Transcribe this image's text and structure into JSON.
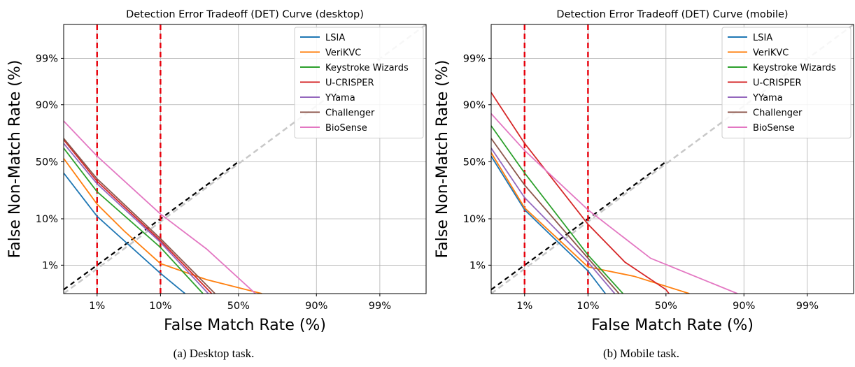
{
  "chart_data": [
    {
      "type": "line",
      "title": "Detection Error Tradeoff (DET) Curve (desktop)",
      "xlabel": "False Match Rate (%)",
      "ylabel": "False Non-Match Rate (%)",
      "x_ticks": [
        {
          "value": 1,
          "label": "1%"
        },
        {
          "value": 10,
          "label": "10%"
        },
        {
          "value": 50,
          "label": "50%"
        },
        {
          "value": 90,
          "label": "90%"
        },
        {
          "value": 99,
          "label": "99%"
        }
      ],
      "y_ticks": [
        {
          "value": 1,
          "label": "1%"
        },
        {
          "value": 10,
          "label": "10%"
        },
        {
          "value": 50,
          "label": "50%"
        },
        {
          "value": 90,
          "label": "90%"
        },
        {
          "value": 99,
          "label": "99%"
        }
      ],
      "xlim": [
        0.2,
        99.9
      ],
      "ylim": [
        0.15,
        99.9
      ],
      "grid": true,
      "legend_position": "top-right",
      "thresholds": [
        1,
        10
      ],
      "reference_line": "diagonal",
      "caption": "(a) Desktop task.",
      "series": [
        {
          "name": "LSIA",
          "color": "#1f77b4",
          "points": [
            [
              0.2,
              40
            ],
            [
              1,
              11
            ],
            [
              10,
              0.6
            ],
            [
              19,
              0.15
            ]
          ]
        },
        {
          "name": "VeriKVC",
          "color": "#ff7f0e",
          "points": [
            [
              0.2,
              53
            ],
            [
              1,
              17
            ],
            [
              3,
              6
            ],
            [
              10,
              1.1
            ],
            [
              30,
              0.4
            ],
            [
              65,
              0.15
            ]
          ]
        },
        {
          "name": "Keystroke Wizards",
          "color": "#2ca02c",
          "points": [
            [
              0.2,
              62
            ],
            [
              1,
              25
            ],
            [
              10,
              2.7
            ],
            [
              28,
              0.15
            ]
          ]
        },
        {
          "name": "U-CRISPER",
          "color": "#d62728",
          "points": [
            [
              0.2,
              69
            ],
            [
              1,
              33
            ],
            [
              10,
              3.8
            ],
            [
              33,
              0.15
            ]
          ]
        },
        {
          "name": "YYama",
          "color": "#9467bd",
          "points": [
            [
              0.2,
              66
            ],
            [
              1,
              31
            ],
            [
              10,
              3.5
            ],
            [
              31,
              0.15
            ]
          ]
        },
        {
          "name": "Challenger",
          "color": "#8c564b",
          "points": [
            [
              0.2,
              70
            ],
            [
              1,
              35
            ],
            [
              10,
              4.2
            ],
            [
              35,
              0.15
            ]
          ]
        },
        {
          "name": "BioSense",
          "color": "#e377c2",
          "points": [
            [
              0.2,
              82
            ],
            [
              1,
              55
            ],
            [
              10,
              12
            ],
            [
              30,
              2.5
            ],
            [
              61,
              0.15
            ]
          ]
        }
      ]
    },
    {
      "type": "line",
      "title": "Detection Error Tradeoff (DET) Curve (mobile)",
      "xlabel": "False Match Rate (%)",
      "ylabel": "False Non-Match Rate (%)",
      "x_ticks": [
        {
          "value": 1,
          "label": "1%"
        },
        {
          "value": 10,
          "label": "10%"
        },
        {
          "value": 50,
          "label": "50%"
        },
        {
          "value": 90,
          "label": "90%"
        },
        {
          "value": 99,
          "label": "99%"
        }
      ],
      "y_ticks": [
        {
          "value": 1,
          "label": "1%"
        },
        {
          "value": 10,
          "label": "10%"
        },
        {
          "value": 50,
          "label": "50%"
        },
        {
          "value": 90,
          "label": "90%"
        },
        {
          "value": 99,
          "label": "99%"
        }
      ],
      "xlim": [
        0.2,
        99.9
      ],
      "ylim": [
        0.15,
        99.9
      ],
      "grid": true,
      "legend_position": "top-right",
      "thresholds": [
        1,
        10
      ],
      "reference_line": "diagonal",
      "caption": "(b) Mobile task.",
      "series": [
        {
          "name": "LSIA",
          "color": "#1f77b4",
          "points": [
            [
              0.2,
              55
            ],
            [
              1,
              14
            ],
            [
              10,
              0.7
            ],
            [
              16,
              0.15
            ]
          ]
        },
        {
          "name": "VeriKVC",
          "color": "#ff7f0e",
          "points": [
            [
              0.2,
              58
            ],
            [
              1,
              15
            ],
            [
              10,
              0.9
            ],
            [
              30,
              0.5
            ],
            [
              65,
              0.15
            ]
          ]
        },
        {
          "name": "Keystroke Wizards",
          "color": "#2ca02c",
          "points": [
            [
              0.2,
              79
            ],
            [
              1,
              40
            ],
            [
              10,
              1.8
            ],
            [
              24,
              0.15
            ]
          ]
        },
        {
          "name": "U-CRISPER",
          "color": "#d62728",
          "points": [
            [
              0.2,
              94
            ],
            [
              1,
              66
            ],
            [
              10,
              8
            ],
            [
              25,
              1.2
            ],
            [
              50,
              0.2
            ],
            [
              52,
              0.15
            ]
          ]
        },
        {
          "name": "YYama",
          "color": "#9467bd",
          "points": [
            [
              0.2,
              62
            ],
            [
              1,
              21
            ],
            [
              10,
              1.2
            ],
            [
              20,
              0.15
            ]
          ]
        },
        {
          "name": "Challenger",
          "color": "#8c564b",
          "points": [
            [
              0.2,
              70
            ],
            [
              1,
              30
            ],
            [
              10,
              1.5
            ],
            [
              22,
              0.15
            ]
          ]
        },
        {
          "name": "BioSense",
          "color": "#e377c2",
          "points": [
            [
              0.2,
              86
            ],
            [
              1,
              60
            ],
            [
              10,
              14
            ],
            [
              40,
              1.5
            ],
            [
              88,
              0.15
            ]
          ]
        }
      ]
    }
  ]
}
